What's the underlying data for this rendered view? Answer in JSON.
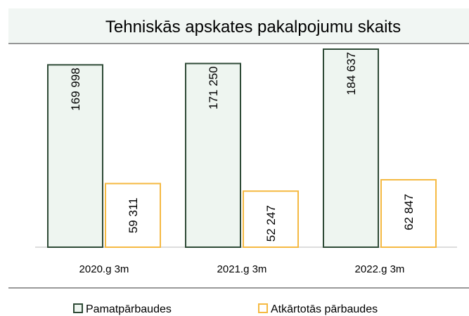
{
  "chart_data": {
    "type": "bar",
    "title": "Tehniskās apskates pakalpojumu skaits",
    "categories": [
      "2020.g 3m",
      "2021.g 3m",
      "2022.g 3m"
    ],
    "series": [
      {
        "name": "Pamatpārbaudes",
        "color": "#2e4a36",
        "fill": "#eef5f0",
        "values": [
          169998,
          171250,
          184637
        ],
        "value_labels": [
          "169 998",
          "171 250",
          "184 637"
        ]
      },
      {
        "name": "Atkārtotās pārbaudes",
        "color": "#f5b942",
        "fill": "#ffffff",
        "values": [
          59311,
          52247,
          62847
        ],
        "value_labels": [
          "59 311",
          "52 247",
          "62 847"
        ]
      }
    ]
  }
}
